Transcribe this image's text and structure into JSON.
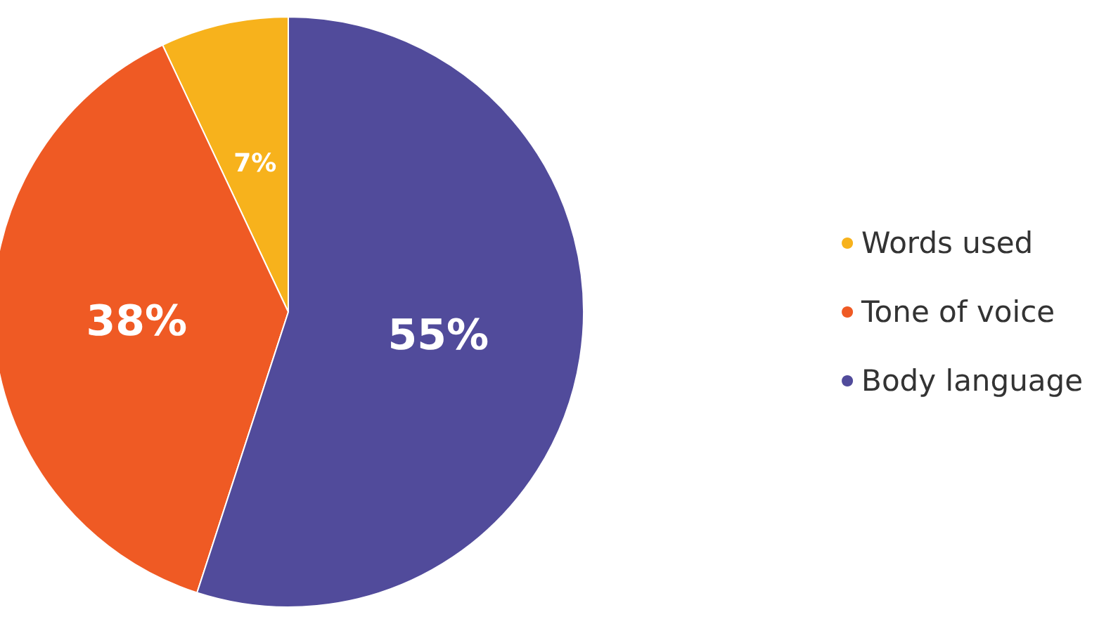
{
  "chart_data": {
    "type": "pie",
    "categories": [
      "Words used",
      "Tone of voice",
      "Body language"
    ],
    "values": [
      7,
      38,
      55
    ],
    "value_labels": [
      "7%",
      "38%",
      "55%"
    ],
    "colors": [
      "#f7b21c",
      "#ef5a24",
      "#514b9b"
    ],
    "legend": "right"
  }
}
